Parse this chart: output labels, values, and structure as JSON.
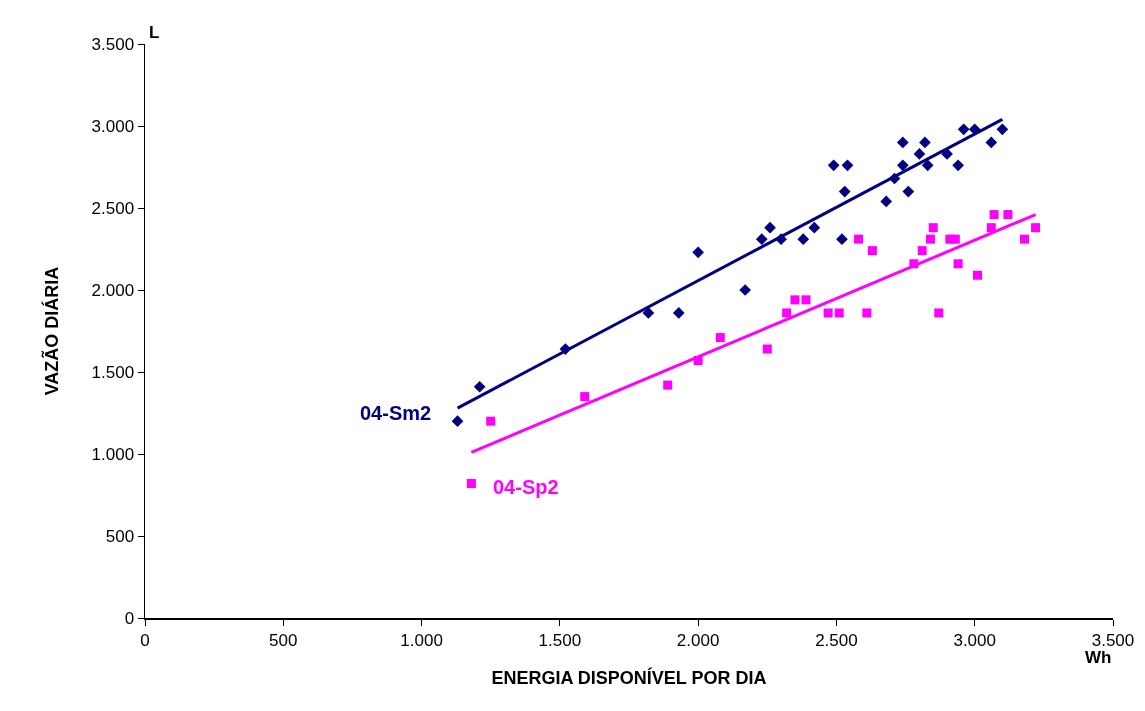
{
  "chart_data": {
    "type": "scatter",
    "xlabel": "ENERGIA DISPONÍVEL POR DIA",
    "ylabel": "VAZÃO DIÁRIA",
    "annotations": [
      "L",
      "Wh"
    ],
    "xlim": [
      0,
      3500
    ],
    "ylim": [
      0,
      3500
    ],
    "xticks": [
      0,
      500,
      {
        "value": 1000,
        "label": "1.000"
      },
      {
        "value": 1500,
        "label": "1.500"
      },
      {
        "value": 2000,
        "label": "2.000"
      },
      {
        "value": 2500,
        "label": "2.500"
      },
      {
        "value": 3000,
        "label": "3.000"
      },
      {
        "value": 3500,
        "label": "3.500"
      }
    ],
    "yticks": [
      0,
      500,
      {
        "value": 1000,
        "label": "1.000"
      },
      {
        "value": 1500,
        "label": "1.500"
      },
      {
        "value": 2000,
        "label": "2.000"
      },
      {
        "value": 2500,
        "label": "2.500"
      },
      {
        "value": 3000,
        "label": "3.000"
      },
      {
        "value": 3500,
        "label": "3.500"
      }
    ],
    "grid": false,
    "legend": false,
    "series": [
      {
        "name": "04-Sm2",
        "type": "scatter",
        "marker": "diamond",
        "color": "#000080",
        "x": [
          1130,
          1210,
          1520,
          1820,
          1930,
          2000,
          2170,
          2230,
          2260,
          2300,
          2380,
          2420,
          2520,
          2490,
          2540,
          2530,
          2680,
          2710,
          2740,
          2740,
          2760,
          2800,
          2820,
          2830,
          2900,
          2940,
          2960,
          3000,
          3060,
          3100
        ],
        "values": [
          1200,
          1410,
          1640,
          1860,
          1860,
          2230,
          2000,
          2310,
          2380,
          2310,
          2310,
          2380,
          2310,
          2760,
          2760,
          2600,
          2540,
          2680,
          2760,
          2900,
          2600,
          2830,
          2900,
          2760,
          2830,
          2760,
          2980,
          2980,
          2900,
          2980
        ]
      },
      {
        "name": "04-Sp2",
        "type": "scatter",
        "marker": "square",
        "color": "#ff00ff",
        "x": [
          1180,
          1250,
          1590,
          1890,
          2000,
          2080,
          2250,
          2320,
          2350,
          2390,
          2470,
          2510,
          2580,
          2610,
          2630,
          2780,
          2810,
          2840,
          2850,
          2870,
          2910,
          2930,
          2940,
          3010,
          3060,
          3070,
          3120,
          3180,
          3220
        ],
        "values": [
          820,
          1200,
          1350,
          1420,
          1570,
          1710,
          1640,
          1860,
          1940,
          1940,
          1860,
          1860,
          2310,
          1860,
          2240,
          2160,
          2240,
          2310,
          2380,
          1860,
          2310,
          2310,
          2160,
          2090,
          2380,
          2460,
          2460,
          2310,
          2380
        ]
      },
      {
        "type": "line",
        "line_style": "solid",
        "color": "#000080",
        "x": [
          1130,
          3100
        ],
        "values": [
          1280,
          3040
        ]
      },
      {
        "type": "line",
        "line_style": "solid",
        "color": "#ff00ff",
        "x": [
          1180,
          3220
        ],
        "values": [
          1010,
          2460
        ]
      }
    ]
  }
}
